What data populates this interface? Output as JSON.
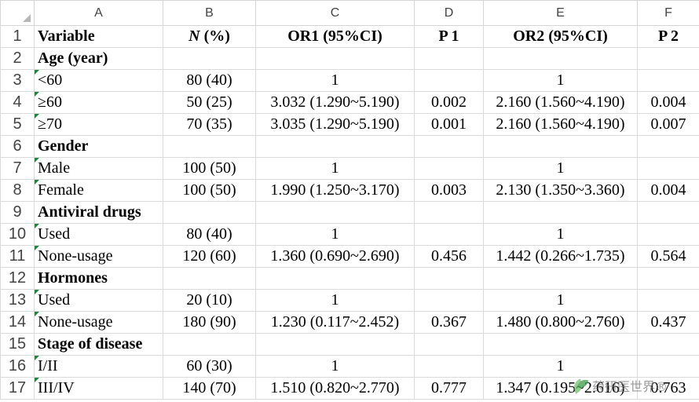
{
  "columns": [
    "A",
    "B",
    "C",
    "D",
    "E",
    "F"
  ],
  "rows": [
    {
      "n": "1",
      "cells": [
        "Variable",
        "N (%)",
        "OR1 (95%CI)",
        "P 1",
        "OR2 (95%CI)",
        "P 2"
      ]
    },
    {
      "n": "2",
      "cells": [
        "Age (year)",
        "",
        "",
        "",
        "",
        ""
      ]
    },
    {
      "n": "3",
      "cells": [
        "<60",
        "80 (40)",
        "1",
        "",
        "1",
        ""
      ]
    },
    {
      "n": "4",
      "cells": [
        "≥60",
        "50 (25)",
        "3.032 (1.290~5.190)",
        "0.002",
        "2.160 (1.560~4.190)",
        "0.004"
      ]
    },
    {
      "n": "5",
      "cells": [
        "≥70",
        "70 (35)",
        "3.035 (1.290~5.190)",
        "0.001",
        "2.160 (1.560~4.190)",
        "0.007"
      ]
    },
    {
      "n": "6",
      "cells": [
        "Gender",
        "",
        "",
        "",
        "",
        ""
      ]
    },
    {
      "n": "7",
      "cells": [
        "Male",
        "100 (50)",
        "1",
        "",
        "1",
        ""
      ]
    },
    {
      "n": "8",
      "cells": [
        "Female",
        "100 (50)",
        "1.990 (1.250~3.170)",
        "0.003",
        "2.130 (1.350~3.360)",
        "0.004"
      ]
    },
    {
      "n": "9",
      "cells": [
        "Antiviral drugs",
        "",
        "",
        "",
        "",
        ""
      ]
    },
    {
      "n": "10",
      "cells": [
        "Used",
        "80 (40)",
        "1",
        "",
        "1",
        ""
      ]
    },
    {
      "n": "11",
      "cells": [
        "None-usage",
        "120 (60)",
        "1.360 (0.690~2.690)",
        "0.456",
        "1.442 (0.266~1.735)",
        "0.564"
      ]
    },
    {
      "n": "12",
      "cells": [
        "Hormones",
        "",
        "",
        "",
        "",
        ""
      ]
    },
    {
      "n": "13",
      "cells": [
        "Used",
        "20 (10)",
        "1",
        "",
        "1",
        ""
      ]
    },
    {
      "n": "14",
      "cells": [
        "None-usage",
        "180 (90)",
        "1.230 (0.117~2.452)",
        "0.367",
        "1.480 (0.800~2.760)",
        "0.437"
      ]
    },
    {
      "n": "15",
      "cells": [
        "Stage of disease",
        "",
        "",
        "",
        "",
        ""
      ]
    },
    {
      "n": "16",
      "cells": [
        "I/II",
        "60 (30)",
        "1",
        "",
        "1",
        ""
      ]
    },
    {
      "n": "17",
      "cells": [
        "III/IV",
        "140 (70)",
        "1.510 (0.820~2.770)",
        "0.777",
        "1.347 (0.195~2.616)",
        "0.763"
      ]
    }
  ],
  "watermark": {
    "text": "药研医世界®",
    "icon": "leaf-logo-icon"
  }
}
